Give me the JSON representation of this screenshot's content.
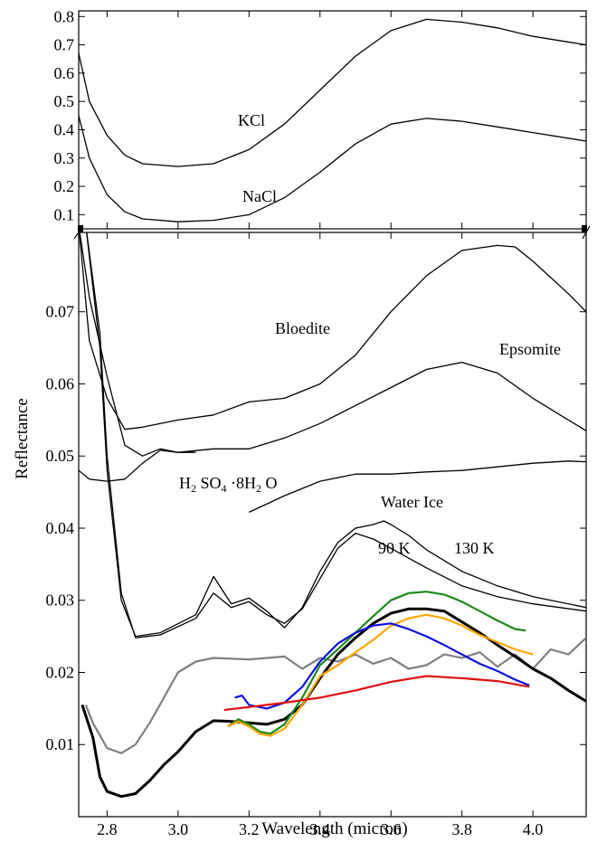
{
  "chart_data": [
    {
      "type": "line",
      "panel": "upper",
      "xlabel": "",
      "ylabel": "",
      "xlim": [
        2.72,
        4.15
      ],
      "ylim": [
        0.05,
        0.82
      ],
      "yticks": [
        "0.1",
        "0.2",
        "0.3",
        "0.4",
        "0.5",
        "0.6",
        "0.7",
        "0.8"
      ],
      "grid": false,
      "series": [
        {
          "name": "KCl",
          "color": "#000000",
          "x": [
            2.72,
            2.75,
            2.8,
            2.85,
            2.9,
            3.0,
            3.1,
            3.2,
            3.3,
            3.4,
            3.5,
            3.6,
            3.7,
            3.8,
            3.9,
            4.0,
            4.15
          ],
          "y": [
            0.67,
            0.5,
            0.38,
            0.31,
            0.28,
            0.27,
            0.28,
            0.33,
            0.42,
            0.54,
            0.66,
            0.75,
            0.79,
            0.78,
            0.76,
            0.73,
            0.7
          ]
        },
        {
          "name": "NaCl",
          "color": "#000000",
          "x": [
            2.72,
            2.75,
            2.8,
            2.85,
            2.9,
            3.0,
            3.1,
            3.2,
            3.3,
            3.4,
            3.5,
            3.6,
            3.7,
            3.8,
            3.9,
            4.0,
            4.15
          ],
          "y": [
            0.45,
            0.3,
            0.17,
            0.11,
            0.085,
            0.075,
            0.08,
            0.1,
            0.16,
            0.25,
            0.35,
            0.42,
            0.44,
            0.43,
            0.41,
            0.39,
            0.36
          ]
        }
      ]
    },
    {
      "type": "line",
      "panel": "lower",
      "xlabel": "Wavelength (micron)",
      "ylabel": "Reflectance",
      "xlim": [
        2.72,
        4.15
      ],
      "ylim": [
        0.0,
        0.081
      ],
      "xticks": [
        "2.8",
        "3.0",
        "3.2",
        "3.4",
        "3.6",
        "3.8",
        "4.0"
      ],
      "yticks": [
        "0.01",
        "0.02",
        "0.03",
        "0.04",
        "0.05",
        "0.06",
        "0.07"
      ],
      "grid": false,
      "series": [
        {
          "name": "Bloedite",
          "color": "#000000",
          "x": [
            2.72,
            2.75,
            2.8,
            2.85,
            2.9,
            3.0,
            3.1,
            3.2,
            3.3,
            3.4,
            3.5,
            3.6,
            3.7,
            3.8,
            3.9,
            3.95,
            4.0,
            4.1,
            4.15
          ],
          "y": [
            0.082,
            0.066,
            0.058,
            0.0537,
            0.054,
            0.055,
            0.0557,
            0.0575,
            0.058,
            0.06,
            0.064,
            0.07,
            0.075,
            0.0785,
            0.0792,
            0.079,
            0.077,
            0.0725,
            0.07
          ]
        },
        {
          "name": "Epsomite",
          "color": "#000000",
          "x": [
            2.72,
            2.75,
            2.8,
            2.85,
            2.9,
            2.95,
            3.0,
            3.1,
            3.2,
            3.3,
            3.4,
            3.5,
            3.6,
            3.7,
            3.8,
            3.9,
            4.0,
            4.1,
            4.15
          ],
          "y": [
            0.082,
            0.072,
            0.061,
            0.0515,
            0.05,
            0.051,
            0.0505,
            0.051,
            0.051,
            0.0525,
            0.0545,
            0.057,
            0.0595,
            0.062,
            0.063,
            0.0615,
            0.058,
            0.055,
            0.0535
          ]
        },
        {
          "name": "H2SO4·8H2O",
          "color": "#000000",
          "x": [
            2.72,
            2.75,
            2.8,
            2.85,
            2.9,
            2.95,
            3.0,
            3.05
          ],
          "y": [
            0.048,
            0.0468,
            0.0465,
            0.0468,
            0.049,
            0.0508,
            0.0505,
            0.0505
          ]
        },
        {
          "name": "H2SO4·8H2O (continued)",
          "color": "#000000",
          "x": [
            3.2,
            3.3,
            3.4,
            3.5,
            3.6,
            3.7,
            3.8,
            3.9,
            4.0,
            4.1,
            4.15
          ],
          "y": [
            0.0422,
            0.0445,
            0.0465,
            0.0475,
            0.0475,
            0.0478,
            0.048,
            0.0485,
            0.049,
            0.0493,
            0.0492
          ]
        },
        {
          "name": "Water Ice 90 K",
          "color": "#000000",
          "x": [
            2.74,
            2.78,
            2.8,
            2.84,
            2.88,
            2.95,
            3.05,
            3.1,
            3.15,
            3.2,
            3.25,
            3.3,
            3.35,
            3.4,
            3.45,
            3.5,
            3.55,
            3.58,
            3.6,
            3.65,
            3.7,
            3.8,
            3.9,
            4.0,
            4.15
          ],
          "y": [
            0.082,
            0.065,
            0.048,
            0.03,
            0.025,
            0.0255,
            0.028,
            0.0333,
            0.0295,
            0.0303,
            0.0285,
            0.0262,
            0.029,
            0.034,
            0.038,
            0.04,
            0.0405,
            0.041,
            0.0405,
            0.039,
            0.037,
            0.034,
            0.032,
            0.0305,
            0.029
          ]
        },
        {
          "name": "Water Ice 130 K",
          "color": "#000000",
          "x": [
            2.74,
            2.78,
            2.8,
            2.84,
            2.88,
            2.95,
            3.05,
            3.1,
            3.15,
            3.2,
            3.25,
            3.3,
            3.35,
            3.4,
            3.45,
            3.5,
            3.55,
            3.6,
            3.7,
            3.8,
            3.9,
            4.0,
            4.15
          ],
          "y": [
            0.082,
            0.067,
            0.05,
            0.031,
            0.0248,
            0.0252,
            0.0275,
            0.031,
            0.029,
            0.0298,
            0.028,
            0.0268,
            0.0288,
            0.033,
            0.0372,
            0.0393,
            0.0385,
            0.0372,
            0.0345,
            0.032,
            0.0305,
            0.0295,
            0.0285
          ]
        },
        {
          "name": "gray spectrum",
          "color": "#808080",
          "x": [
            2.74,
            2.76,
            2.8,
            2.84,
            2.88,
            2.92,
            2.96,
            3.0,
            3.05,
            3.1,
            3.2,
            3.3,
            3.35,
            3.4,
            3.45,
            3.5,
            3.55,
            3.6,
            3.65,
            3.7,
            3.75,
            3.8,
            3.85,
            3.9,
            3.95,
            4.0,
            4.05,
            4.1,
            4.15
          ],
          "y": [
            0.0155,
            0.013,
            0.0095,
            0.0088,
            0.01,
            0.013,
            0.0165,
            0.02,
            0.0215,
            0.022,
            0.0218,
            0.0222,
            0.0205,
            0.022,
            0.0215,
            0.0225,
            0.0212,
            0.022,
            0.0205,
            0.021,
            0.0225,
            0.022,
            0.0228,
            0.0208,
            0.0225,
            0.0205,
            0.0232,
            0.0225,
            0.0248
          ]
        },
        {
          "name": "black spectrum",
          "color": "#000000",
          "x": [
            2.73,
            2.76,
            2.78,
            2.8,
            2.84,
            2.88,
            2.92,
            2.96,
            3.0,
            3.05,
            3.1,
            3.15,
            3.2,
            3.25,
            3.3,
            3.35,
            3.4,
            3.45,
            3.5,
            3.55,
            3.6,
            3.65,
            3.7,
            3.75,
            3.8,
            3.85,
            3.9,
            3.95,
            4.0,
            4.05,
            4.1,
            4.15
          ],
          "y": [
            0.0155,
            0.011,
            0.0055,
            0.0035,
            0.0028,
            0.0032,
            0.005,
            0.0072,
            0.009,
            0.0118,
            0.0133,
            0.0132,
            0.013,
            0.0128,
            0.0135,
            0.0155,
            0.0192,
            0.0225,
            0.0248,
            0.0268,
            0.0282,
            0.0288,
            0.0288,
            0.0285,
            0.027,
            0.0255,
            0.0238,
            0.0222,
            0.0205,
            0.0192,
            0.0175,
            0.016
          ]
        },
        {
          "name": "green spectrum",
          "color": "#1a8a1a",
          "x": [
            3.14,
            3.17,
            3.2,
            3.23,
            3.26,
            3.3,
            3.35,
            3.4,
            3.45,
            3.5,
            3.55,
            3.6,
            3.65,
            3.7,
            3.75,
            3.8,
            3.85,
            3.9,
            3.95,
            3.98
          ],
          "y": [
            0.0125,
            0.0135,
            0.0128,
            0.0118,
            0.0115,
            0.0128,
            0.0165,
            0.021,
            0.0232,
            0.0255,
            0.0278,
            0.03,
            0.031,
            0.0312,
            0.0308,
            0.0298,
            0.0285,
            0.0272,
            0.026,
            0.0258
          ]
        },
        {
          "name": "orange spectrum",
          "color": "#ffa500",
          "x": [
            3.14,
            3.17,
            3.2,
            3.23,
            3.26,
            3.3,
            3.35,
            3.4,
            3.45,
            3.5,
            3.55,
            3.6,
            3.65,
            3.7,
            3.75,
            3.8,
            3.85,
            3.9,
            3.95,
            4.0
          ],
          "y": [
            0.0125,
            0.0132,
            0.0125,
            0.0115,
            0.0112,
            0.0122,
            0.0155,
            0.0195,
            0.021,
            0.0228,
            0.0245,
            0.0265,
            0.0275,
            0.028,
            0.0275,
            0.0265,
            0.0252,
            0.0242,
            0.0232,
            0.0225
          ]
        },
        {
          "name": "blue spectrum",
          "color": "#1010e0",
          "x": [
            3.16,
            3.18,
            3.2,
            3.25,
            3.3,
            3.35,
            3.4,
            3.45,
            3.5,
            3.55,
            3.6,
            3.65,
            3.7,
            3.75,
            3.8,
            3.85,
            3.9,
            3.95,
            3.99
          ],
          "y": [
            0.0165,
            0.0168,
            0.0155,
            0.015,
            0.0158,
            0.018,
            0.0215,
            0.024,
            0.0255,
            0.0265,
            0.0268,
            0.026,
            0.025,
            0.0238,
            0.0225,
            0.0212,
            0.0202,
            0.019,
            0.0182
          ]
        },
        {
          "name": "red spectrum",
          "color": "#e01010",
          "x": [
            3.13,
            3.2,
            3.3,
            3.4,
            3.5,
            3.6,
            3.7,
            3.8,
            3.9,
            3.99
          ],
          "y": [
            0.0148,
            0.0152,
            0.0158,
            0.0165,
            0.0175,
            0.0187,
            0.0195,
            0.0192,
            0.0188,
            0.018
          ]
        }
      ]
    }
  ],
  "labels": {
    "kcl": "KCl",
    "nacl": "NaCl",
    "bloedite": "Bloedite",
    "epsomite": "Epsomite",
    "h2so4": {
      "h": "H",
      "two_a": "2",
      "so": " SO",
      "four": "4",
      "dot8h": " ·8H",
      "two_b": "2",
      "o": " O"
    },
    "water_ice": "Water Ice",
    "k90": "90 K",
    "k130": "130 K"
  }
}
